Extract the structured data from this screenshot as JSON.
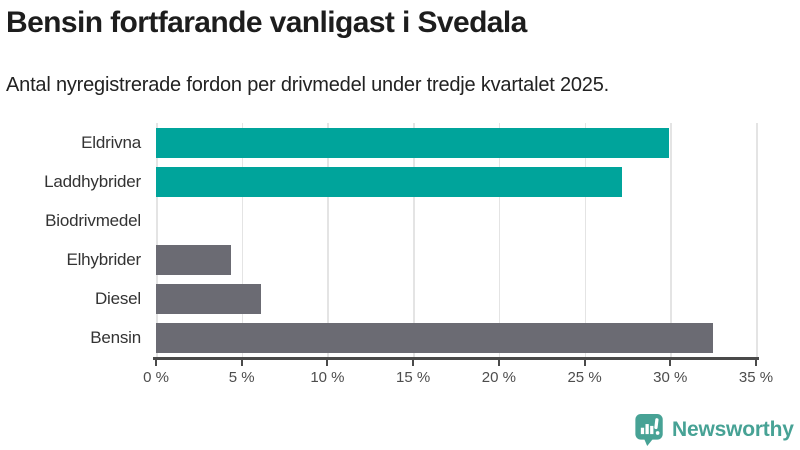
{
  "title": "Bensin fortfarande vanligast i Svedala",
  "subtitle": "Antal nyregistrerade fordon per drivmedel under tredje kvartalet 2025.",
  "footer": {
    "brand": "Newsworthy",
    "logo_icon": "bar-chart-speech-bubble-icon"
  },
  "colors": {
    "accent_teal": "#00a49b",
    "neutral_gray": "#6b6b73",
    "brand_teal": "#47a295",
    "grid": "#e4e4e4",
    "axis": "#4a4a4a",
    "title_text": "#1d1d1d",
    "subtitle_text": "#222222",
    "label_text": "#333333",
    "tick_text": "#4d4d4d"
  },
  "chart_data": {
    "type": "bar",
    "orientation": "horizontal",
    "title": "Bensin fortfarande vanligast i Svedala",
    "subtitle": "Antal nyregistrerade fordon per drivmedel under tredje kvartalet 2025.",
    "categories": [
      "Eldrivna",
      "Laddhybrider",
      "Biodrivmedel",
      "Elhybrider",
      "Diesel",
      "Bensin"
    ],
    "values": [
      29.9,
      27.2,
      0,
      4.4,
      6.1,
      32.5
    ],
    "unit": "%",
    "bar_colors": [
      "#00a49b",
      "#00a49b",
      "#00a49b",
      "#6b6b73",
      "#6b6b73",
      "#6b6b73"
    ],
    "xlim": [
      0,
      35
    ],
    "x_ticks": [
      0,
      5,
      10,
      15,
      20,
      25,
      30,
      35
    ],
    "x_tick_labels": [
      "0 %",
      "5 %",
      "10 %",
      "15 %",
      "20 %",
      "25 %",
      "30 %",
      "35 %"
    ],
    "grid": true,
    "legend": false
  }
}
